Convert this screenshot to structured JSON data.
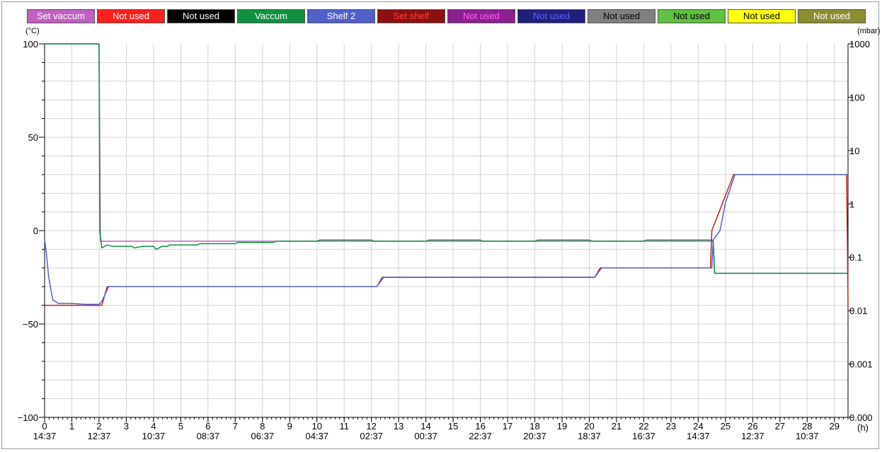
{
  "legend": [
    {
      "label": "Set vaccum",
      "color": "#c060c0",
      "text_color": "#ffffff"
    },
    {
      "label": "Not used",
      "color": "#ff2020",
      "text_color": "#ffffff"
    },
    {
      "label": "Not used",
      "color": "#000000",
      "text_color": "#ffffff"
    },
    {
      "label": "Vaccum",
      "color": "#109040",
      "text_color": "#ffffff"
    },
    {
      "label": "Shelf 2",
      "color": "#5060c8",
      "text_color": "#ffffff"
    },
    {
      "label": "Set shelf",
      "color": "#8c1010",
      "text_color": "#ff4040"
    },
    {
      "label": "Not used",
      "color": "#8c2090",
      "text_color": "#ff60ff"
    },
    {
      "label": "Not used",
      "color": "#20207c",
      "text_color": "#6060ff"
    },
    {
      "label": "Not used",
      "color": "#808080",
      "text_color": "#000000"
    },
    {
      "label": "Not used",
      "color": "#60c040",
      "text_color": "#000000"
    },
    {
      "label": "Not used",
      "color": "#ffff10",
      "text_color": "#000000"
    },
    {
      "label": "Not used",
      "color": "#8c8c30",
      "text_color": "#ffffff"
    }
  ],
  "chart_data": {
    "type": "line",
    "y_left": {
      "unit": "(°C)",
      "range": [
        -100,
        100
      ],
      "ticks": [
        {
          "value": 100,
          "label": "100"
        },
        {
          "value": 50,
          "label": "50"
        },
        {
          "value": 0,
          "label": "0"
        },
        {
          "value": -50,
          "label": "−50"
        },
        {
          "value": -100,
          "label": "−100"
        }
      ]
    },
    "y_right": {
      "unit": "(mbar)",
      "scale": "log",
      "range": [
        0.0001,
        1000
      ],
      "ticks": [
        {
          "value": 1000,
          "label": "1000"
        },
        {
          "value": 100,
          "label": "100"
        },
        {
          "value": 10,
          "label": "10"
        },
        {
          "value": 1,
          "label": "1"
        },
        {
          "value": 0.1,
          "label": "0.1"
        },
        {
          "value": 0.01,
          "label": "0.01"
        },
        {
          "value": 0.001,
          "label": "0.001"
        },
        {
          "value": 0.0001,
          "label": "0.000"
        }
      ]
    },
    "x": {
      "unit": "(h)",
      "range": [
        0,
        29.5
      ],
      "ticks": [
        0,
        1,
        2,
        3,
        4,
        5,
        6,
        7,
        8,
        9,
        10,
        11,
        12,
        13,
        14,
        15,
        16,
        17,
        18,
        19,
        20,
        21,
        22,
        23,
        24,
        25,
        26,
        27,
        28,
        29
      ],
      "time_labels": [
        {
          "hour": 0,
          "label": "14:37"
        },
        {
          "hour": 2,
          "label": "12:37"
        },
        {
          "hour": 4,
          "label": "10:37"
        },
        {
          "hour": 6,
          "label": "08:37"
        },
        {
          "hour": 8,
          "label": "06:37"
        },
        {
          "hour": 10,
          "label": "04:37"
        },
        {
          "hour": 12,
          "label": "02:37"
        },
        {
          "hour": 14,
          "label": "00:37"
        },
        {
          "hour": 16,
          "label": "22:37"
        },
        {
          "hour": 18,
          "label": "20:37"
        },
        {
          "hour": 20,
          "label": "18:37"
        },
        {
          "hour": 22,
          "label": "16:37"
        },
        {
          "hour": 24,
          "label": "14:37"
        },
        {
          "hour": 26,
          "label": "12:37"
        },
        {
          "hour": 28,
          "label": "10:37"
        }
      ]
    },
    "grid": true,
    "series": [
      {
        "name": "Set vaccum",
        "axis": "right",
        "color": "#c060c0",
        "x": [
          0,
          2.0,
          2.05,
          24.55,
          24.6,
          29.5
        ],
        "y": [
          1000,
          1000,
          0.2,
          0.2,
          0.05,
          0.05
        ]
      },
      {
        "name": "Vaccum",
        "axis": "right",
        "color": "#109040",
        "x": [
          0,
          2.0,
          2.03,
          2.1,
          2.3,
          2.5,
          3.2,
          3.3,
          3.6,
          4.0,
          4.1,
          4.3,
          4.5,
          4.6,
          5.6,
          5.7,
          7.0,
          7.1,
          8.4,
          8.5,
          10.0,
          10.1,
          12.0,
          12.1,
          14.0,
          14.1,
          16.0,
          16.1,
          18.0,
          18.1,
          20.0,
          20.1,
          22.0,
          22.1,
          24.5,
          24.55,
          24.6,
          25.5,
          26.0,
          27.0,
          28.0,
          29.0,
          29.5
        ],
        "y": [
          1000,
          1000,
          0.3,
          0.15,
          0.17,
          0.16,
          0.16,
          0.15,
          0.16,
          0.16,
          0.14,
          0.16,
          0.16,
          0.17,
          0.17,
          0.18,
          0.18,
          0.19,
          0.19,
          0.2,
          0.2,
          0.21,
          0.21,
          0.2,
          0.2,
          0.21,
          0.21,
          0.2,
          0.2,
          0.21,
          0.21,
          0.2,
          0.2,
          0.21,
          0.21,
          0.2,
          0.05,
          0.05,
          0.05,
          0.05,
          0.05,
          0.05,
          0.05
        ]
      },
      {
        "name": "Set shelf",
        "axis": "left",
        "color": "#c02020",
        "x": [
          0,
          2.1,
          2.3,
          12.2,
          12.4,
          20.2,
          20.4,
          24.45,
          24.5,
          25.3,
          29.45,
          29.5
        ],
        "y": [
          -40,
          -40,
          -30,
          -30,
          -25,
          -25,
          -20,
          -20,
          0,
          30,
          30,
          -40
        ]
      },
      {
        "name": "Shelf 2",
        "axis": "left",
        "color": "#5060c8",
        "x": [
          0,
          0.05,
          0.15,
          0.3,
          0.5,
          1.0,
          1.5,
          2.0,
          2.1,
          2.35,
          12.2,
          12.45,
          20.2,
          20.45,
          24.5,
          24.55,
          24.8,
          25.0,
          25.35,
          29.5
        ],
        "y": [
          -5,
          -10,
          -25,
          -37,
          -39,
          -39,
          -39.5,
          -39.5,
          -38,
          -30,
          -30,
          -25,
          -25,
          -20,
          -20,
          -5,
          0,
          15,
          30,
          30
        ]
      }
    ]
  }
}
